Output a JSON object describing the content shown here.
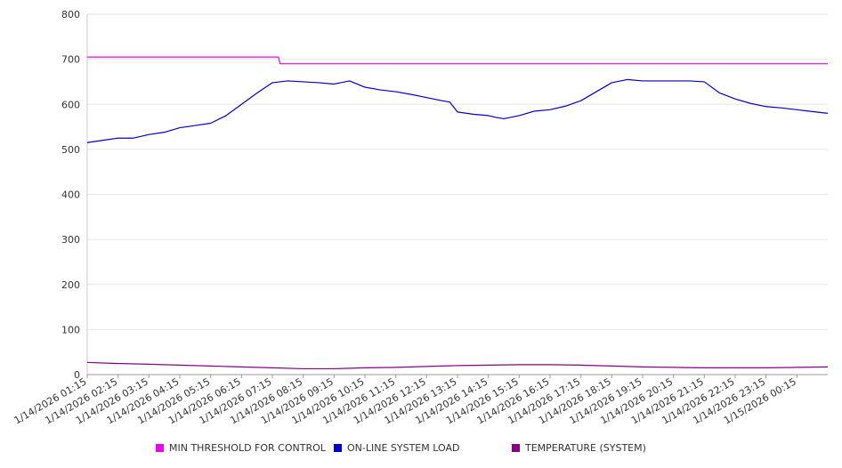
{
  "chart_data": {
    "type": "line",
    "title": "",
    "xlabel": "",
    "ylabel": "",
    "ylim": [
      0,
      800
    ],
    "yticks": [
      "0",
      "100",
      "200",
      "300",
      "400",
      "500",
      "600",
      "700",
      "800"
    ],
    "grid": true,
    "legend_position": "bottom",
    "x_tick_labels": [
      "1/14/2026 01:15",
      "1/14/2026 02:15",
      "1/14/2026 03:15",
      "1/14/2026 04:15",
      "1/14/2026 05:15",
      "1/14/2026 06:15",
      "1/14/2026 07:15",
      "1/14/2026 08:15",
      "1/14/2026 09:15",
      "1/14/2026 10:15",
      "1/14/2026 11:15",
      "1/14/2026 12:15",
      "1/14/2026 13:15",
      "1/14/2026 14:15",
      "1/14/2026 15:15",
      "1/14/2026 16:15",
      "1/14/2026 17:15",
      "1/14/2026 18:15",
      "1/14/2026 19:15",
      "1/14/2026 20:15",
      "1/14/2026 21:15",
      "1/14/2026 22:15",
      "1/14/2026 23:15",
      "1/15/2026 00:15"
    ],
    "x_unit": "hours after 1/14/2026 01:15",
    "x_range": [
      0,
      24
    ],
    "series": [
      {
        "name": "MIN THRESHOLD FOR CONTROL",
        "color": "#ee00ee",
        "x": [
          0,
          6.2,
          6.25,
          24
        ],
        "y": [
          705,
          705,
          690,
          690
        ]
      },
      {
        "name": "ON-LINE SYSTEM LOAD",
        "color": "#0000cc",
        "x": [
          0,
          0.5,
          1,
          1.5,
          2,
          2.5,
          3,
          3.5,
          4,
          4.5,
          5,
          5.5,
          6,
          6.5,
          7,
          7.5,
          8,
          8.5,
          9,
          9.5,
          10,
          10.5,
          11,
          11.5,
          11.75,
          12,
          12.5,
          13,
          13.25,
          13.5,
          14,
          14.5,
          15,
          15.5,
          16,
          16.5,
          17,
          17.5,
          18,
          18.5,
          19,
          19.5,
          20,
          20.5,
          21,
          21.5,
          22,
          22.5,
          23,
          23.5,
          24
        ],
        "y": [
          515,
          520,
          525,
          525,
          533,
          538,
          548,
          553,
          558,
          575,
          600,
          625,
          648,
          652,
          650,
          648,
          645,
          652,
          638,
          632,
          628,
          622,
          615,
          608,
          605,
          583,
          578,
          575,
          571,
          568,
          575,
          585,
          588,
          596,
          608,
          628,
          648,
          655,
          652,
          652,
          652,
          652,
          650,
          625,
          612,
          602,
          595,
          592,
          588,
          584,
          580
        ]
      },
      {
        "name": "TEMPERATURE (SYSTEM)",
        "color": "#880088",
        "x": [
          0,
          0.8,
          2,
          3,
          4,
          5,
          6,
          7,
          8,
          9,
          10,
          11,
          12,
          13,
          14,
          15,
          16,
          17,
          18,
          19,
          20,
          21,
          22,
          23,
          24
        ],
        "y": [
          27,
          25,
          23,
          21,
          19,
          17,
          15,
          13,
          13,
          15,
          16,
          18,
          20,
          21,
          22,
          22,
          21,
          19,
          17,
          16,
          15,
          15,
          15,
          16,
          17
        ]
      }
    ]
  }
}
